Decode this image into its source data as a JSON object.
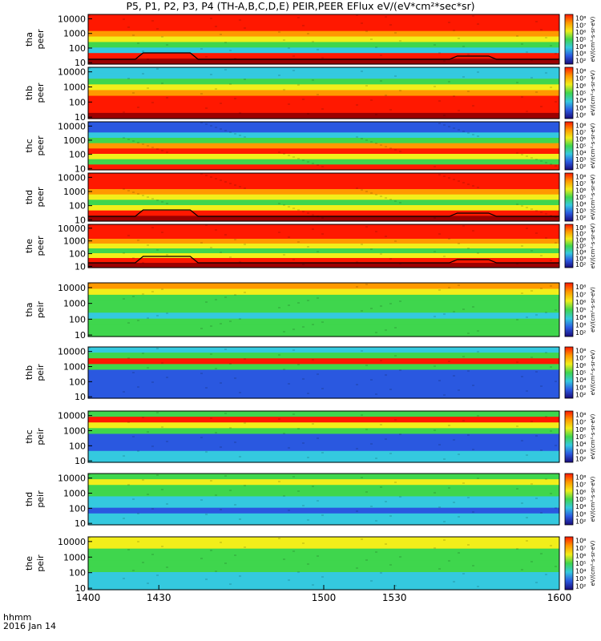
{
  "title": "P5, P1, P2, P3, P4 (TH-A,B,C,D,E) PEIR,PEER EFlux eV/(eV*cm²*sec*sr)",
  "footer": {
    "time_label": "hhmm",
    "date_label": "2016 Jan 14"
  },
  "colors": {
    "dark_red": "#9b0000",
    "red": "#ff1800",
    "orange": "#ff9900",
    "yellow": "#f2ee1a",
    "green": "#3fd64d",
    "cyan": "#34c9df",
    "blue": "#2a58e0",
    "navy": "#1a0c7a"
  },
  "chart_data": {
    "type": "heatmap",
    "x_ticks": [
      "1400",
      "1430",
      "1500",
      "1530",
      "1600"
    ],
    "x_range": [
      1400,
      1600
    ],
    "y_scale": "log",
    "y_range": [
      8,
      20000
    ],
    "y_tick_labels": [
      "10",
      "100",
      "1000",
      "10000"
    ],
    "colorbar_ticks": [
      "10²",
      "10³",
      "10⁴",
      "10⁵",
      "10⁶",
      "10⁷",
      "10⁸"
    ],
    "colorbar_label": "eV/(cm²-s-sr-eV)",
    "panels": [
      {
        "id": "tha-peer",
        "label": "tha\npeer",
        "bands": [
          "red",
          "red",
          "red",
          "orange",
          "yellow",
          "green",
          "cyan",
          "red",
          "darkred"
        ],
        "overlay_line": true
      },
      {
        "id": "thb-peer",
        "label": "thb\npeer",
        "bands": [
          "cyan",
          "cyan",
          "green",
          "yellow",
          "orange",
          "red",
          "red",
          "red",
          "darkred"
        ]
      },
      {
        "id": "thc-peer",
        "label": "thc\npeer",
        "bands": [
          "blue",
          "blue",
          "cyan",
          "green",
          "orange",
          "red",
          "yellow",
          "green",
          "red"
        ]
      },
      {
        "id": "thd-peer",
        "label": "thd\npeer",
        "bands": [
          "red",
          "red",
          "red",
          "orange",
          "yellow",
          "green",
          "yellow",
          "red",
          "darkred"
        ],
        "overlay_line": true
      },
      {
        "id": "the-peer",
        "label": "the\npeer",
        "bands": [
          "red",
          "red",
          "red",
          "orange",
          "yellow",
          "green",
          "yellow",
          "red",
          "darkred"
        ],
        "overlay_line": true
      },
      {
        "id": "tha-peir",
        "label": "tha\npeir",
        "bands": [
          "orange",
          "yellow",
          "green",
          "green",
          "green",
          "cyan",
          "green",
          "green",
          "green"
        ]
      },
      {
        "id": "thb-peir",
        "label": "thb\npeir",
        "bands": [
          "cyan",
          "green",
          "red",
          "green",
          "blue",
          "blue",
          "blue",
          "blue",
          "blue"
        ]
      },
      {
        "id": "thc-peir",
        "label": "thc\npeir",
        "bands": [
          "green",
          "red",
          "yellow",
          "green",
          "blue",
          "blue",
          "blue",
          "cyan",
          "cyan"
        ]
      },
      {
        "id": "thd-peir",
        "label": "thd\npeir",
        "bands": [
          "green",
          "yellow",
          "green",
          "green",
          "cyan",
          "cyan",
          "blue",
          "cyan",
          "cyan"
        ]
      },
      {
        "id": "the-peir",
        "label": "the\npeir",
        "bands": [
          "yellow",
          "yellow",
          "green",
          "green",
          "green",
          "green",
          "cyan",
          "cyan",
          "cyan"
        ]
      }
    ]
  }
}
